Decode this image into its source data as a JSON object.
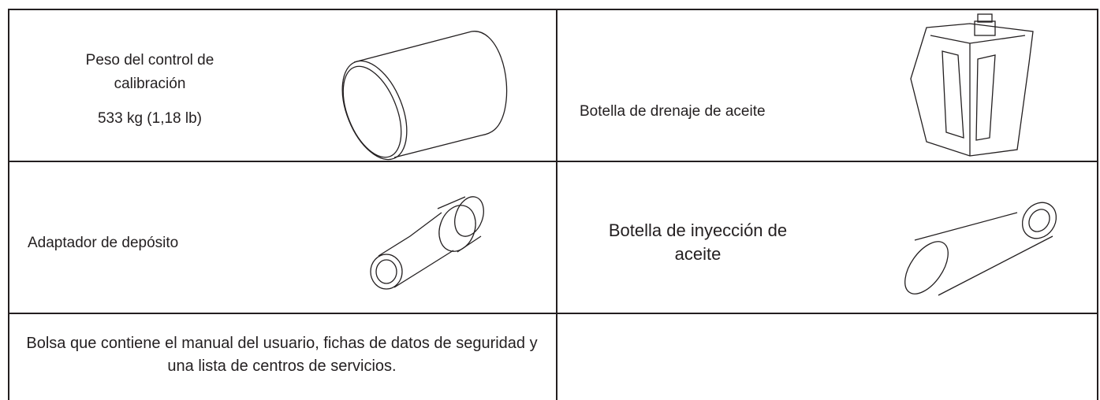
{
  "table": {
    "rows": [
      [
        {
          "text": "Peso del control de calibración",
          "detail": "533 kg (1,18 lb)"
        },
        {
          "text": "Botella de drenaje de aceite"
        }
      ],
      [
        {
          "text": "Adaptador de depósito"
        },
        {
          "text": "Botella de inyección de aceite"
        }
      ],
      [
        {
          "text": "Bolsa que contiene el manual del usuario, fichas de datos de seguridad y una lista de centros de servicios."
        }
      ]
    ]
  }
}
